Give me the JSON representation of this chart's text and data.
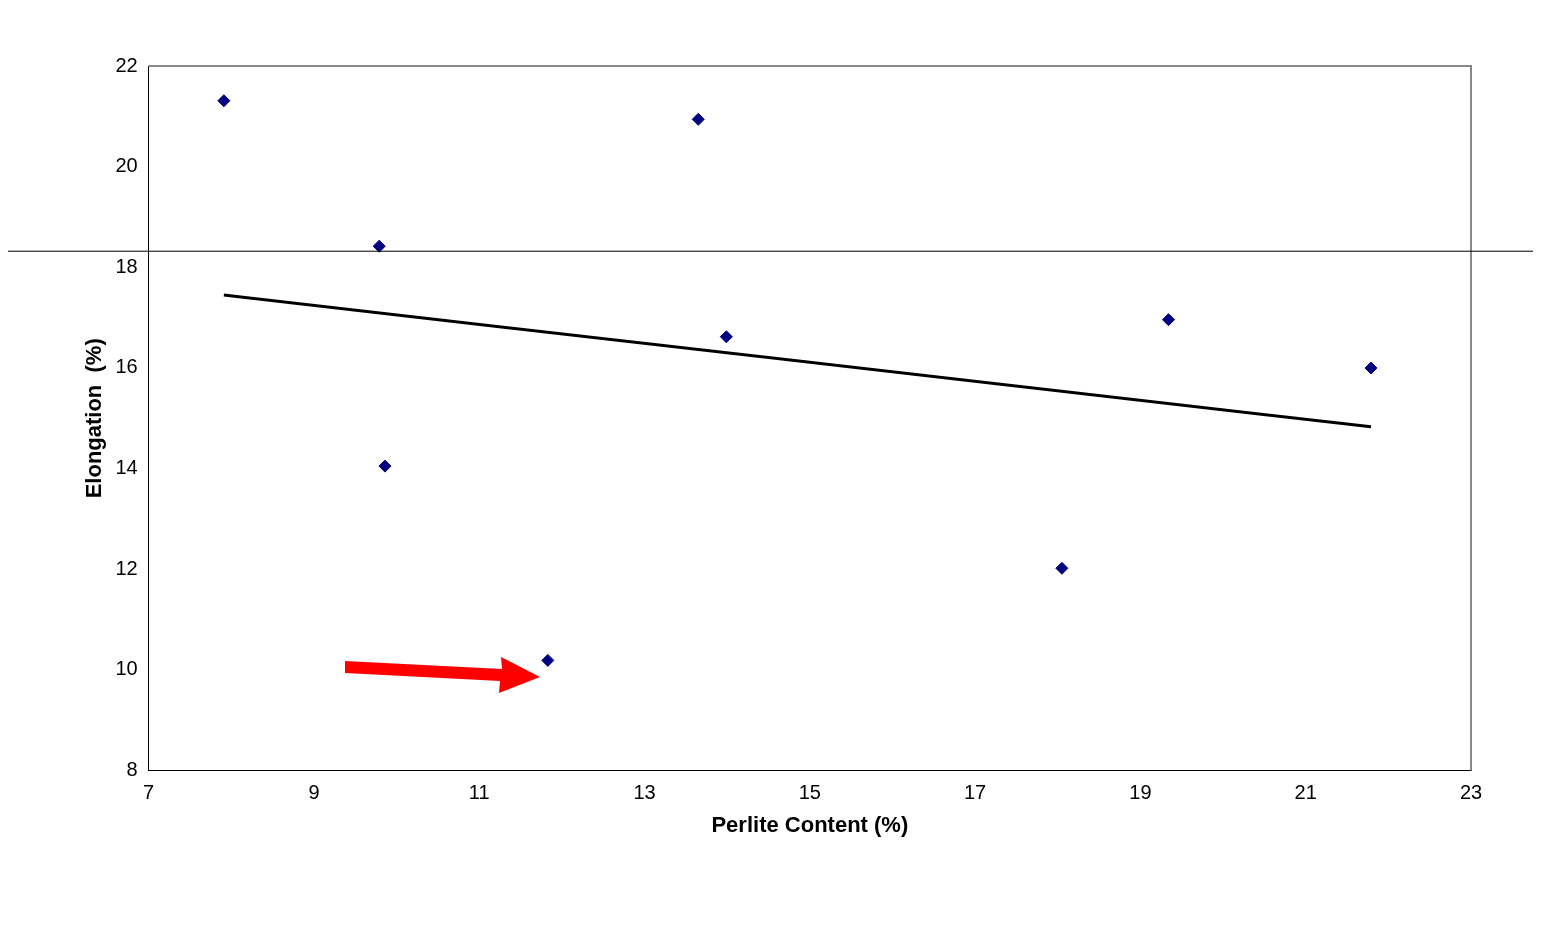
{
  "chart_data": {
    "type": "scatter",
    "xlabel": "Perlite Content (%)",
    "ylabel": "Elongation  (%)",
    "xlim": [
      7,
      23
    ],
    "xticks": [
      7,
      9,
      11,
      13,
      15,
      17,
      19,
      21,
      23
    ],
    "ylim": [
      8,
      22
    ],
    "yticks": [
      8,
      10,
      12,
      14,
      16,
      18,
      20,
      22
    ],
    "grid": false,
    "legend": false,
    "marker": "diamond",
    "series": [
      {
        "type": "scatter",
        "color": "#000080",
        "x": [
          7.91,
          9.79,
          9.86,
          11.83,
          13.65,
          13.99,
          18.05,
          19.34,
          21.79
        ],
        "values": [
          21.31,
          18.42,
          14.05,
          10.19,
          20.94,
          16.62,
          12.02,
          16.96,
          16.0
        ]
      },
      {
        "type": "line",
        "color": "#000000",
        "marker": "none",
        "line_style": "solid",
        "x": [
          7.91,
          21.79
        ],
        "values": [
          17.45,
          14.83
        ]
      }
    ],
    "ref_lines": [
      {
        "axis": "y",
        "value": 18.32,
        "color": "#000000"
      }
    ]
  }
}
